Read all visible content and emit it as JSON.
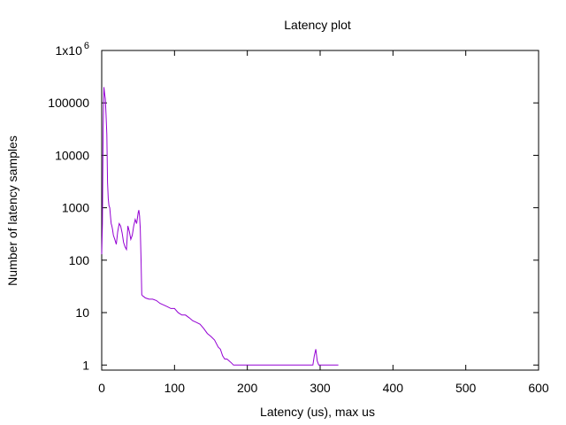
{
  "chart_data": {
    "type": "line",
    "title": "Latency plot",
    "xlabel": "Latency (us), max  us",
    "ylabel": "Number of latency samples",
    "xlim": [
      0,
      600
    ],
    "ylim": [
      0.8,
      1000000
    ],
    "yscale": "log",
    "grid": false,
    "x_ticks": [
      0,
      100,
      200,
      300,
      400,
      500,
      600
    ],
    "x_tick_labels": [
      "0",
      "100",
      "200",
      "300",
      "400",
      "500",
      "600"
    ],
    "y_ticks": [
      1,
      10,
      100,
      1000,
      10000,
      100000
    ],
    "y_tick_labels": [
      "1",
      "10",
      "100",
      "1000",
      "10000",
      "100000"
    ],
    "y_top_tick": {
      "mantissa": "1x10",
      "exponent": "6",
      "value": 1000000
    },
    "series": [
      {
        "color": "#9400d3",
        "x": [
          0,
          1,
          2,
          3,
          4,
          5,
          6,
          7,
          8,
          9,
          10,
          11,
          12,
          13,
          14,
          15,
          16,
          18,
          20,
          22,
          24,
          26,
          28,
          30,
          32,
          34,
          36,
          38,
          40,
          42,
          44,
          46,
          48,
          50,
          51,
          52,
          53,
          54,
          55,
          56,
          58,
          60,
          65,
          70,
          75,
          80,
          85,
          90,
          95,
          100,
          105,
          110,
          115,
          120,
          125,
          130,
          135,
          140,
          145,
          150,
          155,
          160,
          163,
          166,
          169,
          172,
          175,
          178,
          181,
          184,
          187,
          190,
          195,
          200,
          210,
          220,
          230,
          240,
          250,
          260,
          270,
          280,
          290,
          292,
          294,
          296,
          298,
          300,
          310,
          320,
          325
        ],
        "y": [
          130,
          500,
          30000,
          200000,
          150000,
          120000,
          60000,
          25000,
          3000,
          1500,
          1100,
          1000,
          700,
          500,
          450,
          380,
          300,
          250,
          200,
          350,
          500,
          450,
          330,
          220,
          180,
          160,
          450,
          350,
          250,
          300,
          450,
          600,
          500,
          800,
          900,
          700,
          400,
          100,
          22,
          21,
          20,
          19,
          18,
          18,
          17,
          15,
          14,
          13,
          12,
          12,
          10,
          9,
          9,
          8,
          7,
          6.5,
          6,
          5,
          4,
          3.5,
          3,
          2.2,
          2,
          1.5,
          1.3,
          1.3,
          1.2,
          1.1,
          1,
          1,
          1,
          1,
          1,
          1,
          1,
          1,
          1,
          1,
          1,
          1,
          1,
          1,
          1,
          1.5,
          2,
          1.2,
          1,
          1,
          1,
          1,
          1
        ]
      }
    ]
  }
}
